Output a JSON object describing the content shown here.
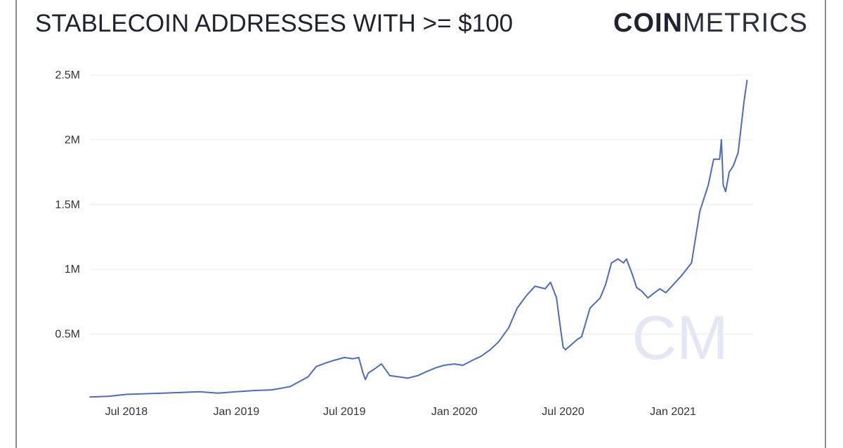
{
  "header": {
    "title": "STABLECOIN ADDRESSES WITH >= $100",
    "logo_bold": "COIN",
    "logo_light": "METRICS"
  },
  "watermark": "CM",
  "colors": {
    "line": "#4a6bc4",
    "grid": "#ececec",
    "watermark": "#e4e6f3"
  },
  "chart_data": {
    "type": "line",
    "title": "STABLECOIN ADDRESSES WITH >= $100",
    "xlabel": "",
    "ylabel": "",
    "ylim": [
      0,
      2500000
    ],
    "xlim": [
      "2018-05-01",
      "2021-05-15"
    ],
    "y_ticks": [
      {
        "value": 500000,
        "label": "0.5M"
      },
      {
        "value": 1000000,
        "label": "1M"
      },
      {
        "value": 1500000,
        "label": "1.5M"
      },
      {
        "value": 2000000,
        "label": "2M"
      },
      {
        "value": 2500000,
        "label": "2.5M"
      }
    ],
    "x_ticks": [
      {
        "date": "2018-07-01",
        "label": "Jul 2018"
      },
      {
        "date": "2019-01-01",
        "label": "Jan 2019"
      },
      {
        "date": "2019-07-01",
        "label": "Jul 2019"
      },
      {
        "date": "2020-01-01",
        "label": "Jan 2020"
      },
      {
        "date": "2020-07-01",
        "label": "Jul 2020"
      },
      {
        "date": "2021-01-01",
        "label": "Jan 2021"
      }
    ],
    "grid": true,
    "legend": "none",
    "series": [
      {
        "x": [
          "2018-05-01",
          "2018-06-01",
          "2018-07-01",
          "2018-08-01",
          "2018-09-01",
          "2018-10-01",
          "2018-11-01",
          "2018-12-01",
          "2019-01-01",
          "2019-02-01",
          "2019-03-01",
          "2019-03-20",
          "2019-04-01",
          "2019-04-15",
          "2019-05-01",
          "2019-05-15",
          "2019-06-01",
          "2019-06-15",
          "2019-07-01",
          "2019-07-15",
          "2019-07-25",
          "2019-08-01",
          "2019-08-05",
          "2019-08-10",
          "2019-08-20",
          "2019-09-01",
          "2019-09-15",
          "2019-10-01",
          "2019-10-15",
          "2019-11-01",
          "2019-11-15",
          "2019-12-01",
          "2019-12-15",
          "2020-01-01",
          "2020-01-15",
          "2020-02-01",
          "2020-02-15",
          "2020-03-01",
          "2020-03-15",
          "2020-04-01",
          "2020-04-15",
          "2020-05-01",
          "2020-05-15",
          "2020-06-01",
          "2020-06-10",
          "2020-06-20",
          "2020-06-25",
          "2020-07-01",
          "2020-07-05",
          "2020-07-10",
          "2020-07-15",
          "2020-07-20",
          "2020-07-25",
          "2020-08-01",
          "2020-08-15",
          "2020-09-01",
          "2020-09-10",
          "2020-09-20",
          "2020-10-01",
          "2020-10-10",
          "2020-10-15",
          "2020-10-25",
          "2020-11-01",
          "2020-11-10",
          "2020-11-20",
          "2020-12-01",
          "2020-12-10",
          "2020-12-20",
          "2021-01-01",
          "2021-01-15",
          "2021-02-01",
          "2021-02-15",
          "2021-03-01",
          "2021-03-10",
          "2021-03-20",
          "2021-03-23",
          "2021-03-26",
          "2021-03-30",
          "2021-04-05",
          "2021-04-12",
          "2021-04-20",
          "2021-04-30",
          "2021-05-05"
        ],
        "values": [
          15000,
          20000,
          35000,
          40000,
          45000,
          50000,
          55000,
          45000,
          55000,
          65000,
          70000,
          85000,
          95000,
          130000,
          170000,
          250000,
          280000,
          300000,
          320000,
          310000,
          320000,
          200000,
          150000,
          200000,
          230000,
          270000,
          180000,
          170000,
          160000,
          180000,
          210000,
          240000,
          260000,
          270000,
          260000,
          300000,
          330000,
          380000,
          440000,
          550000,
          700000,
          800000,
          870000,
          850000,
          900000,
          780000,
          600000,
          400000,
          380000,
          400000,
          420000,
          440000,
          460000,
          480000,
          700000,
          780000,
          880000,
          1050000,
          1080000,
          1050000,
          1080000,
          960000,
          860000,
          830000,
          780000,
          820000,
          850000,
          820000,
          880000,
          950000,
          1050000,
          1450000,
          1650000,
          1850000,
          1850000,
          2000000,
          1650000,
          1600000,
          1750000,
          1800000,
          1900000,
          2300000,
          2460000
        ]
      }
    ]
  }
}
